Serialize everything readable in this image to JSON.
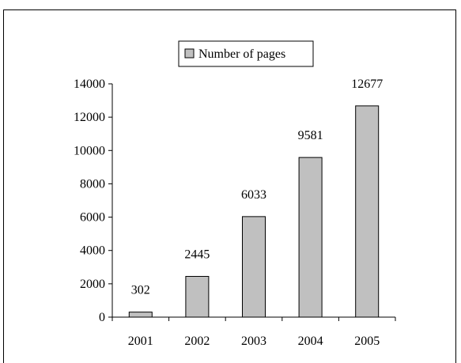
{
  "chart_data": {
    "type": "bar",
    "categories": [
      "2001",
      "2002",
      "2003",
      "2004",
      "2005"
    ],
    "series": [
      {
        "name": "Number of pages",
        "values": [
          302,
          2445,
          6033,
          9581,
          12677
        ]
      }
    ],
    "data_labels": [
      "302",
      "2445",
      "6033",
      "9581",
      "12677"
    ],
    "ylim": [
      0,
      14000
    ],
    "y_ticks": [
      "0",
      "2000",
      "4000",
      "6000",
      "8000",
      "10000",
      "12000",
      "14000"
    ],
    "grid": false,
    "legend_position": "top-center",
    "bar_color": "#c0c0c0",
    "title": "",
    "xlabel": "",
    "ylabel": ""
  }
}
